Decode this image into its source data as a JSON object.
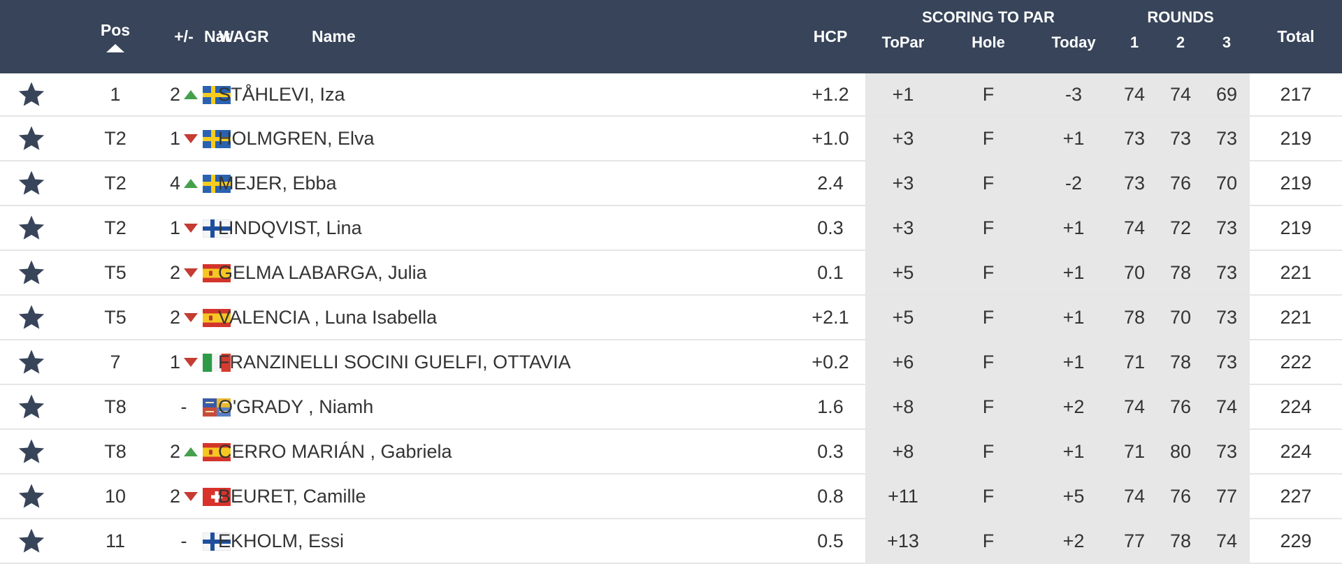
{
  "header": {
    "pos": "Pos",
    "move": "+/-",
    "nat": "Nat",
    "wagr": "WAGR",
    "name": "Name",
    "hcp": "HCP",
    "scoring_group": "SCORING TO PAR",
    "topar": "ToPar",
    "hole": "Hole",
    "today": "Today",
    "rounds_group": "ROUNDS",
    "r1": "1",
    "r2": "2",
    "r3": "3",
    "total": "Total"
  },
  "rows": [
    {
      "pos": "1",
      "move": "2",
      "dir": "up",
      "nat": "SWE",
      "name": "STÅHLEVI, Iza",
      "hcp": "+1.2",
      "topar": "+1",
      "hole": "F",
      "today": "-3",
      "r1": "74",
      "r2": "74",
      "r3": "69",
      "total": "217"
    },
    {
      "pos": "T2",
      "move": "1",
      "dir": "down",
      "nat": "SWE",
      "name": "HOLMGREN, Elva",
      "hcp": "+1.0",
      "topar": "+3",
      "hole": "F",
      "today": "+1",
      "r1": "73",
      "r2": "73",
      "r3": "73",
      "total": "219"
    },
    {
      "pos": "T2",
      "move": "4",
      "dir": "up",
      "nat": "SWE",
      "name": "MEJER, Ebba",
      "hcp": "2.4",
      "topar": "+3",
      "hole": "F",
      "today": "-2",
      "r1": "73",
      "r2": "76",
      "r3": "70",
      "total": "219"
    },
    {
      "pos": "T2",
      "move": "1",
      "dir": "down",
      "nat": "FIN",
      "name": "LINDQVIST, Lina",
      "hcp": "0.3",
      "topar": "+3",
      "hole": "F",
      "today": "+1",
      "r1": "74",
      "r2": "72",
      "r3": "73",
      "total": "219"
    },
    {
      "pos": "T5",
      "move": "2",
      "dir": "down",
      "nat": "ESP",
      "name": "GELMA LABARGA, Julia",
      "hcp": "0.1",
      "topar": "+5",
      "hole": "F",
      "today": "+1",
      "r1": "70",
      "r2": "78",
      "r3": "73",
      "total": "221"
    },
    {
      "pos": "T5",
      "move": "2",
      "dir": "down",
      "nat": "ESP",
      "name": "VALENCIA , Luna Isabella",
      "hcp": "+2.1",
      "topar": "+5",
      "hole": "F",
      "today": "+1",
      "r1": "78",
      "r2": "70",
      "r3": "73",
      "total": "221"
    },
    {
      "pos": "7",
      "move": "1",
      "dir": "down",
      "nat": "ITA",
      "name": "FRANZINELLI SOCINI GUELFI, OTTAVIA",
      "hcp": "+0.2",
      "topar": "+6",
      "hole": "F",
      "today": "+1",
      "r1": "71",
      "r2": "78",
      "r3": "73",
      "total": "222"
    },
    {
      "pos": "T8",
      "move": "-",
      "dir": "none",
      "nat": "IRL",
      "name": "O'GRADY , Niamh",
      "hcp": "1.6",
      "topar": "+8",
      "hole": "F",
      "today": "+2",
      "r1": "74",
      "r2": "76",
      "r3": "74",
      "total": "224"
    },
    {
      "pos": "T8",
      "move": "2",
      "dir": "up",
      "nat": "ESP",
      "name": "CERRO MARIÁN , Gabriela",
      "hcp": "0.3",
      "topar": "+8",
      "hole": "F",
      "today": "+1",
      "r1": "71",
      "r2": "80",
      "r3": "73",
      "total": "224"
    },
    {
      "pos": "10",
      "move": "2",
      "dir": "down",
      "nat": "SUI",
      "name": "BEURET, Camille",
      "hcp": "0.8",
      "topar": "+11",
      "hole": "F",
      "today": "+5",
      "r1": "74",
      "r2": "76",
      "r3": "77",
      "total": "227"
    },
    {
      "pos": "11",
      "move": "-",
      "dir": "none",
      "nat": "FIN",
      "name": "EKHOLM, Essi",
      "hcp": "0.5",
      "topar": "+13",
      "hole": "F",
      "today": "+2",
      "r1": "77",
      "r2": "78",
      "r3": "74",
      "total": "229"
    }
  ],
  "colors": {
    "header_bg": "#374459",
    "group_header_text": "#8e9aad",
    "score_bg": "#e7e7e7",
    "arrow_up": "#45a04e",
    "arrow_down": "#c43c33",
    "star": "#374459"
  }
}
